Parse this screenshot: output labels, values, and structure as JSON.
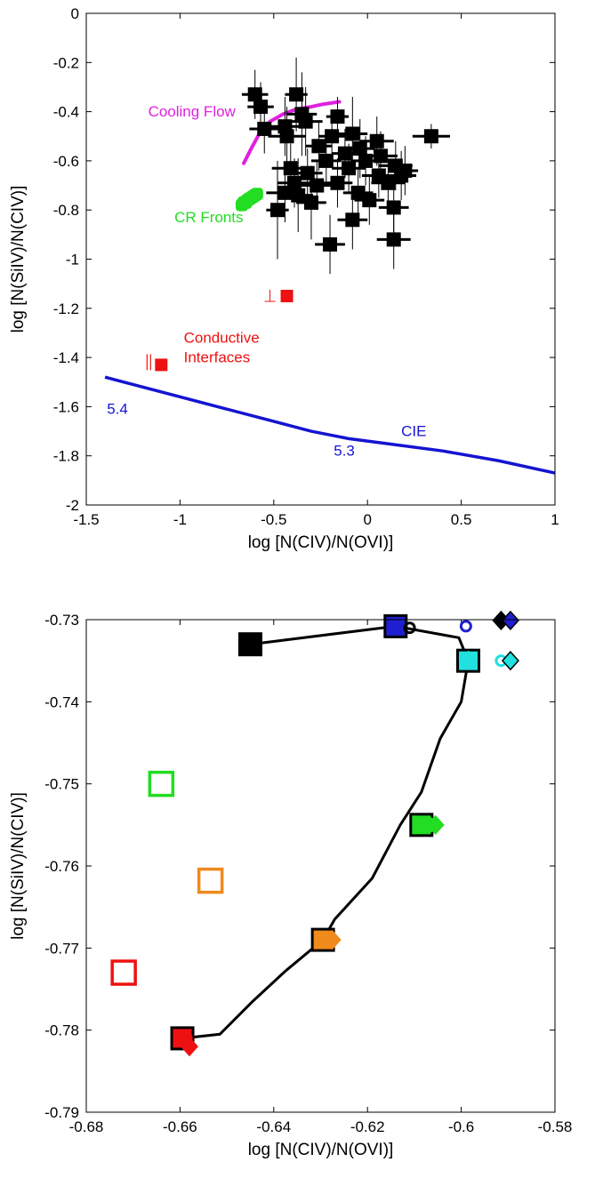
{
  "chart_data": [
    {
      "type": "scatter",
      "title": "",
      "xlabel": "log [N(CIV)/N(OVI)]",
      "ylabel": "log [N(SiIV)/N(CIV)]",
      "xlim": [
        -1.5,
        1
      ],
      "ylim": [
        -2,
        0
      ],
      "xticks": [
        -1.5,
        -1,
        -0.5,
        0,
        0.5,
        1
      ],
      "xtick_labels": [
        "-1.5",
        "-1",
        "-0.5",
        "0",
        "0.5",
        "1"
      ],
      "yticks": [
        0,
        -0.2,
        -0.4,
        -0.6,
        -0.8,
        -1,
        -1.2,
        -1.4,
        -1.6,
        -1.8,
        -2
      ],
      "ytick_labels": [
        "0",
        "-0.2",
        "-0.4",
        "-0.6",
        "-0.8",
        "-1",
        "-1.2",
        "-1.4",
        "-1.6",
        "-1.8",
        "-2"
      ],
      "grid": false,
      "series": [
        {
          "kind": "observations",
          "color": "#000000",
          "marker": "filled-square",
          "points": [
            {
              "x": -0.6,
              "y": -0.33,
              "xerr": 0.07,
              "yerr": 0.1
            },
            {
              "x": -0.57,
              "y": -0.38,
              "xerr": 0.07,
              "yerr": 0.1
            },
            {
              "x": -0.38,
              "y": -0.33,
              "xerr": 0.06,
              "yerr": 0.15
            },
            {
              "x": -0.35,
              "y": -0.41,
              "xerr": 0.08,
              "yerr": 0.17
            },
            {
              "x": -0.55,
              "y": -0.47,
              "xerr": 0.08,
              "yerr": 0.1
            },
            {
              "x": -0.44,
              "y": -0.46,
              "xerr": 0.08,
              "yerr": 0.12
            },
            {
              "x": -0.33,
              "y": -0.44,
              "xerr": 0.09,
              "yerr": 0.14
            },
            {
              "x": -0.43,
              "y": -0.5,
              "xerr": 0.1,
              "yerr": 0.12
            },
            {
              "x": -0.16,
              "y": -0.42,
              "xerr": 0.06,
              "yerr": 0.08
            },
            {
              "x": -0.08,
              "y": -0.49,
              "xerr": 0.08,
              "yerr": 0.15
            },
            {
              "x": -0.19,
              "y": -0.5,
              "xerr": 0.07,
              "yerr": 0.1
            },
            {
              "x": -0.04,
              "y": -0.55,
              "xerr": 0.08,
              "yerr": 0.12
            },
            {
              "x": -0.26,
              "y": -0.54,
              "xerr": 0.07,
              "yerr": 0.1
            },
            {
              "x": -0.12,
              "y": -0.57,
              "xerr": 0.07,
              "yerr": 0.1
            },
            {
              "x": -0.22,
              "y": -0.6,
              "xerr": 0.08,
              "yerr": 0.1
            },
            {
              "x": -0.1,
              "y": -0.63,
              "xerr": 0.09,
              "yerr": 0.1
            },
            {
              "x": 0.05,
              "y": -0.52,
              "xerr": 0.09,
              "yerr": 0.1
            },
            {
              "x": 0.07,
              "y": -0.58,
              "xerr": 0.09,
              "yerr": 0.1
            },
            {
              "x": 0.06,
              "y": -0.66,
              "xerr": 0.09,
              "yerr": 0.09
            },
            {
              "x": 0.15,
              "y": -0.62,
              "xerr": 0.09,
              "yerr": 0.1
            },
            {
              "x": 0.18,
              "y": -0.66,
              "xerr": 0.08,
              "yerr": 0.1
            },
            {
              "x": 0.11,
              "y": -0.69,
              "xerr": 0.09,
              "yerr": 0.1
            },
            {
              "x": 0.2,
              "y": -0.64,
              "xerr": 0.07,
              "yerr": 0.1
            },
            {
              "x": -0.01,
              "y": -0.6,
              "xerr": 0.08,
              "yerr": 0.1
            },
            {
              "x": 0.34,
              "y": -0.5,
              "xerr": 0.1,
              "yerr": 0.05
            },
            {
              "x": -0.41,
              "y": -0.63,
              "xerr": 0.1,
              "yerr": 0.1
            },
            {
              "x": -0.32,
              "y": -0.65,
              "xerr": 0.08,
              "yerr": 0.1
            },
            {
              "x": -0.39,
              "y": -0.69,
              "xerr": 0.09,
              "yerr": 0.1
            },
            {
              "x": -0.27,
              "y": -0.7,
              "xerr": 0.09,
              "yerr": 0.1
            },
            {
              "x": -0.44,
              "y": -0.73,
              "xerr": 0.1,
              "yerr": 0.12
            },
            {
              "x": -0.37,
              "y": -0.74,
              "xerr": 0.08,
              "yerr": 0.15
            },
            {
              "x": -0.16,
              "y": -0.69,
              "xerr": 0.08,
              "yerr": 0.1
            },
            {
              "x": -0.05,
              "y": -0.73,
              "xerr": 0.08,
              "yerr": 0.1
            },
            {
              "x": 0.01,
              "y": -0.76,
              "xerr": 0.08,
              "yerr": 0.1
            },
            {
              "x": -0.3,
              "y": -0.77,
              "xerr": 0.08,
              "yerr": 0.15
            },
            {
              "x": 0.14,
              "y": -0.79,
              "xerr": 0.08,
              "yerr": 0.12
            },
            {
              "x": -0.08,
              "y": -0.84,
              "xerr": 0.08,
              "yerr": 0.12
            },
            {
              "x": -0.2,
              "y": -0.94,
              "xerr": 0.08,
              "yerr": 0.12
            },
            {
              "x": 0.14,
              "y": -0.92,
              "xerr": 0.09,
              "yerr": 0.12
            },
            {
              "x": -0.48,
              "y": -0.8,
              "xerr": 0.06,
              "yerr": 0.2
            }
          ]
        },
        {
          "kind": "curve",
          "name": "Cooling Flow",
          "color": "#e020e0",
          "x": [
            -0.66,
            -0.62,
            -0.57,
            -0.52,
            -0.45,
            -0.38,
            -0.3,
            -0.24,
            -0.15
          ],
          "y": [
            -0.61,
            -0.55,
            -0.48,
            -0.44,
            -0.41,
            -0.39,
            -0.38,
            -0.37,
            -0.36
          ]
        },
        {
          "kind": "cluster",
          "name": "CR Fronts",
          "color": "#22dd22",
          "x": [
            -0.67,
            -0.66,
            -0.65,
            -0.64,
            -0.63,
            -0.62,
            -0.61,
            -0.6,
            -0.59
          ],
          "y": [
            -0.78,
            -0.77,
            -0.77,
            -0.76,
            -0.755,
            -0.75,
            -0.745,
            -0.74,
            -0.735
          ]
        },
        {
          "kind": "curve",
          "name": "CIE",
          "color": "#1414d2",
          "x": [
            -1.4,
            -1.1,
            -0.8,
            -0.5,
            -0.3,
            -0.1,
            0.1,
            0.4,
            0.7,
            1.0
          ],
          "y": [
            -1.48,
            -1.54,
            -1.6,
            -1.66,
            -1.7,
            -1.73,
            -1.75,
            -1.78,
            -1.82,
            -1.87
          ]
        }
      ],
      "conductive_points": [
        {
          "x": -0.43,
          "y": -1.15,
          "symbol": "⊥"
        },
        {
          "x": -1.1,
          "y": -1.43,
          "symbol": "||"
        }
      ],
      "annotations": [
        {
          "text": "Cooling Flow",
          "x": -1.17,
          "y": -0.42,
          "color": "#e020e0"
        },
        {
          "text": "CR Fronts",
          "x": -1.03,
          "y": -0.85,
          "color": "#22dd22"
        },
        {
          "text": "Conductive",
          "x": -0.98,
          "y": -1.34,
          "color": "#ee1111"
        },
        {
          "text": "Interfaces",
          "x": -0.98,
          "y": -1.42,
          "color": "#ee1111"
        },
        {
          "text": "5.4",
          "x": -1.39,
          "y": -1.63,
          "color": "#1414d2"
        },
        {
          "text": "5.3",
          "x": -0.18,
          "y": -1.8,
          "color": "#1414d2"
        },
        {
          "text": "CIE",
          "x": 0.18,
          "y": -1.72,
          "color": "#1414d2"
        }
      ]
    },
    {
      "type": "scatter",
      "title": "",
      "xlabel": "log [N(CIV)/N(OVI)]",
      "ylabel": "log [N(SiIV)/N(CIV)]",
      "xlim": [
        -0.68,
        -0.58
      ],
      "ylim": [
        -0.79,
        -0.73
      ],
      "xticks": [
        -0.68,
        -0.66,
        -0.64,
        -0.62,
        -0.6,
        -0.58
      ],
      "xtick_labels": [
        "-0.68",
        "-0.66",
        "-0.64",
        "-0.62",
        "-0.6",
        "-0.58"
      ],
      "yticks": [
        -0.73,
        -0.74,
        -0.75,
        -0.76,
        -0.77,
        -0.78,
        -0.79
      ],
      "ytick_labels": [
        "-0.73",
        "-0.74",
        "-0.75",
        "-0.76",
        "-0.77",
        "-0.78",
        "-0.79"
      ],
      "grid": false,
      "track": {
        "color": "#000000",
        "x": [
          -0.645,
          -0.614,
          -0.6005,
          -0.5985,
          -0.6,
          -0.6045,
          -0.6085,
          -0.613,
          -0.619,
          -0.627,
          -0.6295,
          -0.6375,
          -0.6445,
          -0.6515,
          -0.6595
        ],
        "y": [
          -0.733,
          -0.7308,
          -0.7322,
          -0.735,
          -0.74,
          -0.7445,
          -0.751,
          -0.755,
          -0.7615,
          -0.7665,
          -0.769,
          -0.7728,
          -0.7765,
          -0.7805,
          -0.781
        ]
      },
      "markers": [
        {
          "x": -0.645,
          "y": -0.733,
          "shape": "square",
          "color": "#000000",
          "fill": "#000000"
        },
        {
          "x": -0.614,
          "y": -0.7308,
          "shape": "square",
          "color": "#000000",
          "fill": "#1f1fd1"
        },
        {
          "x": -0.614,
          "y": -0.7308,
          "shape": "circle",
          "color": "#1f1fd1",
          "fill": "#1f1fd1"
        },
        {
          "x": -0.611,
          "y": -0.731,
          "shape": "ring",
          "color": "#000000",
          "fill": "none"
        },
        {
          "x": -0.599,
          "y": -0.7308,
          "shape": "ring",
          "color": "#1f1fd1",
          "fill": "none"
        },
        {
          "x": -0.5915,
          "y": -0.7301,
          "shape": "diamond",
          "color": "#000000",
          "fill": "#000000"
        },
        {
          "x": -0.5895,
          "y": -0.7301,
          "shape": "diamond",
          "color": "#000000",
          "fill": "#1f1fd1"
        },
        {
          "x": -0.5985,
          "y": -0.735,
          "shape": "square",
          "color": "#000000",
          "fill": "#22e0e0"
        },
        {
          "x": -0.5985,
          "y": -0.735,
          "shape": "star",
          "color": "#22e0e0",
          "fill": "#22e0e0"
        },
        {
          "x": -0.5915,
          "y": -0.735,
          "shape": "ring",
          "color": "#22e0e0",
          "fill": "none"
        },
        {
          "x": -0.5895,
          "y": -0.735,
          "shape": "diamond",
          "color": "#000000",
          "fill": "#22e0e0"
        },
        {
          "x": -0.6085,
          "y": -0.755,
          "shape": "square",
          "color": "#000000",
          "fill": "#22dd22"
        },
        {
          "x": -0.607,
          "y": -0.755,
          "shape": "circle",
          "color": "#22dd22",
          "fill": "#22dd22"
        },
        {
          "x": -0.6055,
          "y": -0.755,
          "shape": "diamond",
          "color": "#22dd22",
          "fill": "#22dd22"
        },
        {
          "x": -0.6295,
          "y": -0.769,
          "shape": "square",
          "color": "#000000",
          "fill": "#f08a1c"
        },
        {
          "x": -0.6285,
          "y": -0.769,
          "shape": "circle",
          "color": "#f08a1c",
          "fill": "#f08a1c"
        },
        {
          "x": -0.6275,
          "y": -0.769,
          "shape": "diamond",
          "color": "#f08a1c",
          "fill": "#f08a1c"
        },
        {
          "x": -0.6595,
          "y": -0.781,
          "shape": "square",
          "color": "#000000",
          "fill": "#ee1111"
        },
        {
          "x": -0.659,
          "y": -0.781,
          "shape": "circle",
          "color": "#ee1111",
          "fill": "#ee1111"
        },
        {
          "x": -0.658,
          "y": -0.782,
          "shape": "diamond",
          "color": "#ee1111",
          "fill": "#ee1111"
        },
        {
          "x": -0.664,
          "y": -0.75,
          "shape": "open-square",
          "color": "#22dd22",
          "fill": "none"
        },
        {
          "x": -0.6535,
          "y": -0.7618,
          "shape": "open-square",
          "color": "#f08a1c",
          "fill": "none"
        },
        {
          "x": -0.672,
          "y": -0.773,
          "shape": "open-square",
          "color": "#ee1111",
          "fill": "none"
        }
      ]
    }
  ]
}
